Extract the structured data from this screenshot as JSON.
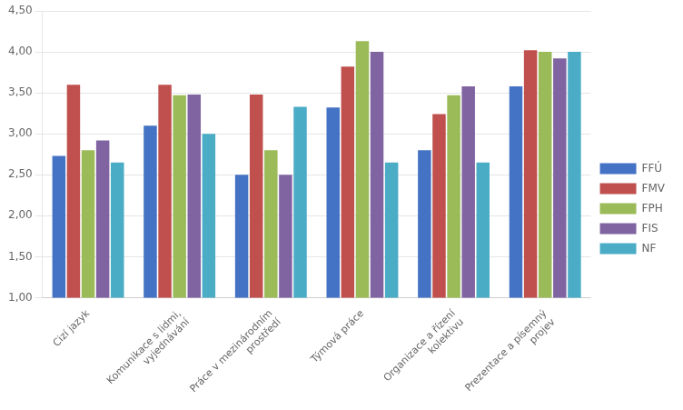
{
  "chart_data": {
    "type": "bar",
    "categories": [
      "Cizí jazyk",
      "Komunikace s lidmi,\nvyjednávání",
      "Práce v mezinárodním\nprostředí",
      "Týmová práce",
      "Organizace a řízení\nkolektivu",
      "Prezentace a písemný\nprojev"
    ],
    "series": [
      {
        "name": "FFÚ",
        "color": "#4472C4",
        "values": [
          2.73,
          3.1,
          2.5,
          3.32,
          2.8,
          3.58
        ]
      },
      {
        "name": "FMV",
        "color": "#C0504D",
        "values": [
          3.6,
          3.6,
          3.48,
          3.82,
          3.24,
          4.02
        ]
      },
      {
        "name": "FPH",
        "color": "#9BBB59",
        "values": [
          2.8,
          3.47,
          2.8,
          4.13,
          3.47,
          4.0
        ]
      },
      {
        "name": "FIS",
        "color": "#8064A2",
        "values": [
          2.92,
          3.48,
          2.5,
          4.0,
          3.58,
          3.92
        ]
      },
      {
        "name": "NF",
        "color": "#4BACC6",
        "values": [
          2.65,
          3.0,
          3.33,
          2.65,
          2.65,
          4.0
        ]
      }
    ],
    "ylim": [
      1.0,
      4.5
    ],
    "yticks": [
      {
        "value": 1.0,
        "label": "1,00"
      },
      {
        "value": 1.5,
        "label": "1,50"
      },
      {
        "value": 2.0,
        "label": "2,00"
      },
      {
        "value": 2.5,
        "label": "2,50"
      },
      {
        "value": 3.0,
        "label": "3,00"
      },
      {
        "value": 3.5,
        "label": "3,50"
      },
      {
        "value": 4.0,
        "label": "4,00"
      },
      {
        "value": 4.5,
        "label": "4,50"
      }
    ],
    "grid": true,
    "legend": "right"
  }
}
